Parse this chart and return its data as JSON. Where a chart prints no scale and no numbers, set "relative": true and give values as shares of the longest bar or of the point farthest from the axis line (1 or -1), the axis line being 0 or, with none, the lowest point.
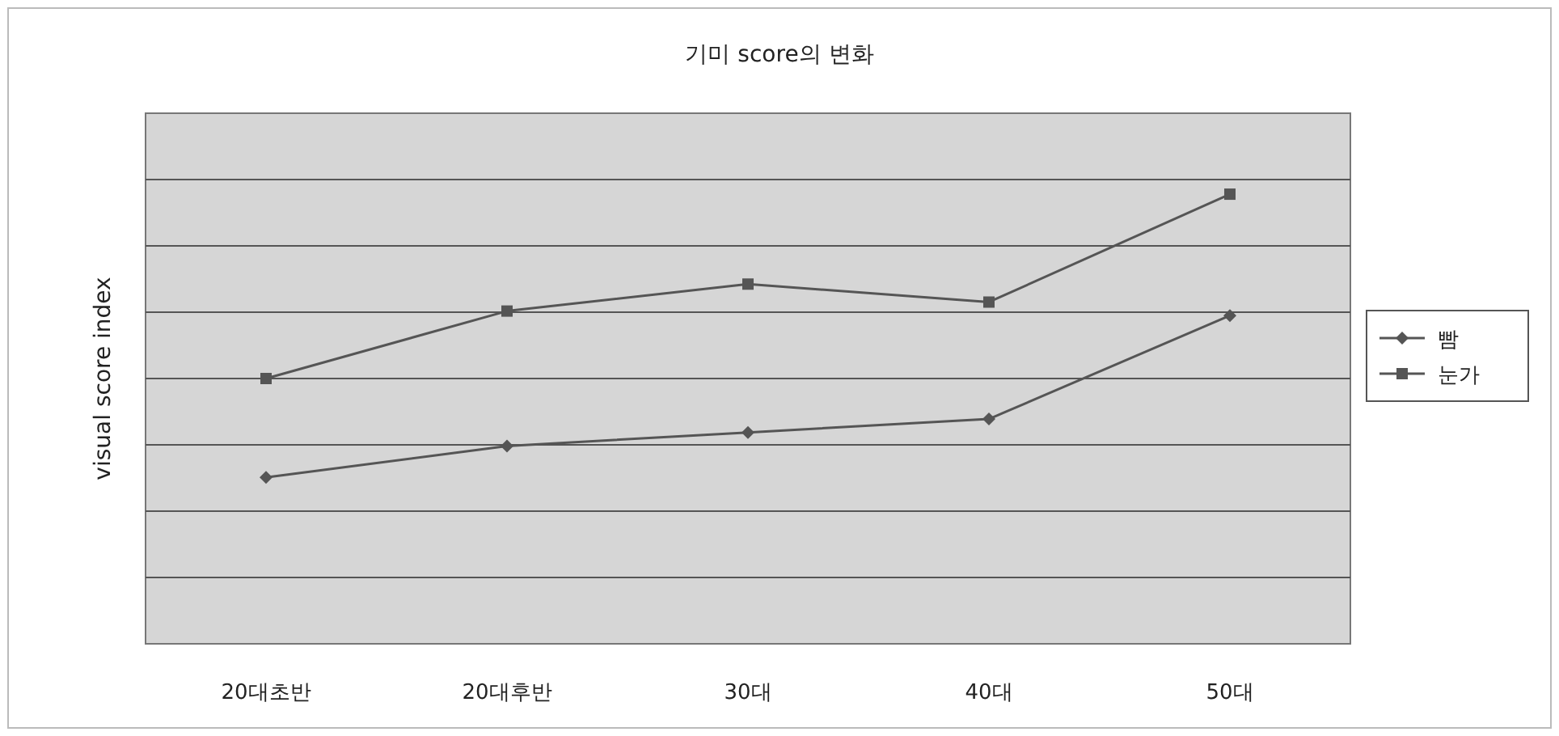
{
  "chart_data": {
    "type": "line",
    "title": "기미 score의 변화",
    "ylabel": "visual score index",
    "relative": true,
    "grid": "y",
    "legend": "right",
    "categories": [
      "20대초반",
      "20대후반",
      "30대",
      "40대",
      "50대"
    ],
    "series": [
      {
        "name": "빰",
        "color": "#555555",
        "marker": "diamond",
        "values": [
          0.37,
          0.44,
          0.47,
          0.5,
          0.73
        ]
      },
      {
        "name": "눈가",
        "color": "#555555",
        "marker": "square",
        "values": [
          0.59,
          0.74,
          0.8,
          0.76,
          1
        ]
      }
    ]
  }
}
